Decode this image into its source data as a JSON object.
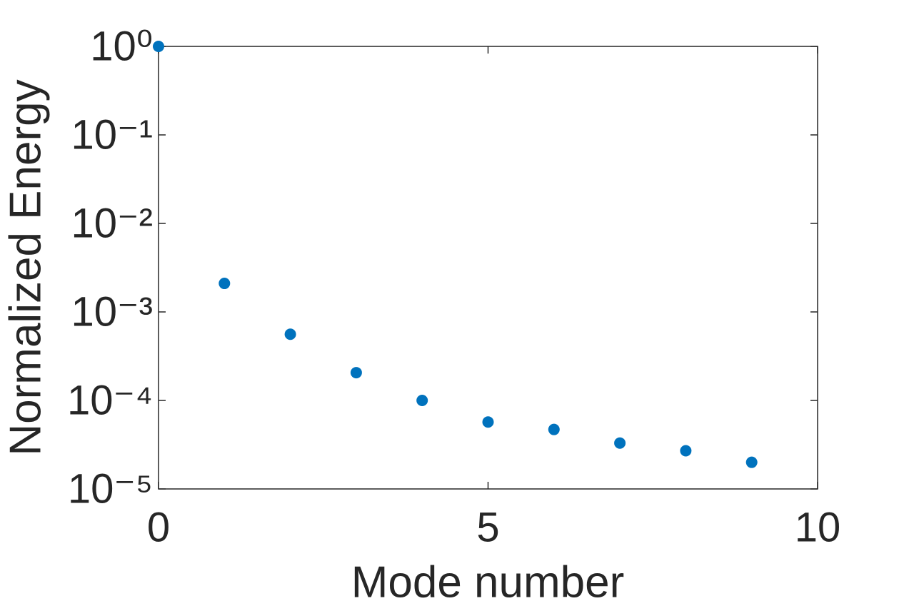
{
  "chart_data": {
    "type": "scatter",
    "xlabel": "Mode number",
    "ylabel": "Normalized Energy",
    "x": [
      0,
      1,
      2,
      3,
      4,
      5,
      6,
      7,
      8,
      9
    ],
    "values": [
      1,
      0.0021,
      0.00056,
      0.000206,
      0.0001,
      5.7e-05,
      4.7e-05,
      3.3e-05,
      2.7e-05,
      2e-05
    ],
    "color": "#0072bd",
    "xlim": [
      0,
      10
    ],
    "xticks": [
      0,
      5,
      10
    ],
    "ylim": [
      1e-05,
      1
    ],
    "yscale": "log",
    "yticks": [
      {
        "value": 1,
        "label": "10⁰"
      },
      {
        "value": 0.1,
        "label": "10⁻¹"
      },
      {
        "value": 0.01,
        "label": "10⁻²"
      },
      {
        "value": 0.001,
        "label": "10⁻³"
      },
      {
        "value": 0.0001,
        "label": "10⁻⁴"
      },
      {
        "value": 1e-05,
        "label": "10⁻⁵"
      }
    ],
    "grid": false
  }
}
